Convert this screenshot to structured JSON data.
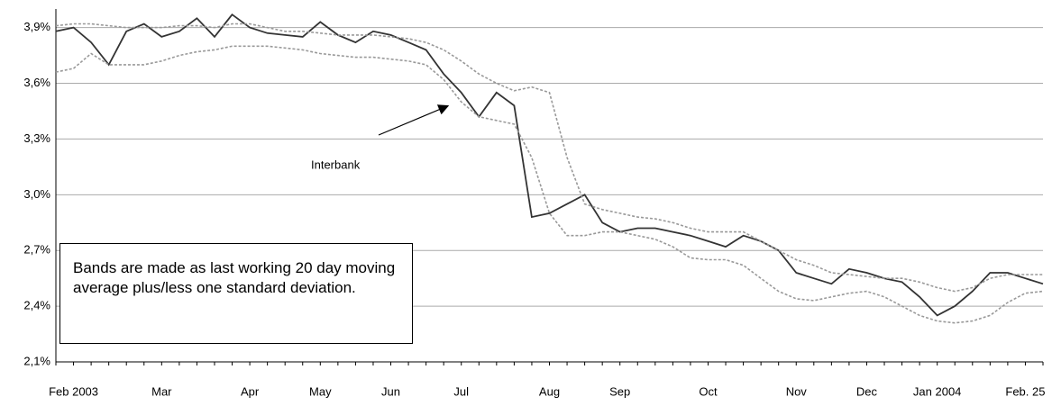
{
  "chart_data": {
    "type": "line",
    "note": "Bands are made as last working 20 day moving average plus/less one standard deviation.",
    "categories": [
      null,
      "Feb 2003",
      null,
      null,
      null,
      null,
      "Mar",
      null,
      null,
      null,
      null,
      "Apr",
      null,
      null,
      null,
      "May",
      null,
      null,
      null,
      "Jun",
      null,
      null,
      null,
      "Jul",
      null,
      null,
      null,
      null,
      "Aug",
      null,
      null,
      null,
      "Sep",
      null,
      null,
      null,
      null,
      "Oct",
      null,
      null,
      null,
      null,
      "Nov",
      null,
      null,
      null,
      "Dec",
      null,
      null,
      null,
      "Jan 2004",
      null,
      null,
      null,
      null,
      "Feb. 25",
      null
    ],
    "series": [
      {
        "name": "Interbank",
        "color": "#333333",
        "dashed": false,
        "values": [
          3.88,
          3.9,
          3.82,
          3.7,
          3.88,
          3.92,
          3.85,
          3.88,
          3.95,
          3.85,
          3.97,
          3.9,
          3.87,
          3.86,
          3.85,
          3.93,
          3.86,
          3.82,
          3.88,
          3.86,
          3.82,
          3.78,
          3.65,
          3.55,
          3.42,
          3.55,
          3.48,
          2.88,
          2.9,
          2.95,
          3.0,
          2.85,
          2.8,
          2.82,
          2.82,
          2.8,
          2.78,
          2.75,
          2.72,
          2.78,
          2.75,
          2.7,
          2.58,
          2.55,
          2.52,
          2.6,
          2.58,
          2.55,
          2.53,
          2.45,
          2.35,
          2.4,
          2.48,
          2.58,
          2.58,
          2.55,
          2.52
        ]
      },
      {
        "color": "#999999",
        "dashed": true,
        "values": [
          3.91,
          3.92,
          3.92,
          3.91,
          3.9,
          3.9,
          3.9,
          3.91,
          3.91,
          3.9,
          3.92,
          3.92,
          3.9,
          3.88,
          3.88,
          3.87,
          3.86,
          3.86,
          3.86,
          3.85,
          3.84,
          3.82,
          3.78,
          3.72,
          3.65,
          3.6,
          3.56,
          3.58,
          3.55,
          3.2,
          2.95,
          2.92,
          2.9,
          2.88,
          2.87,
          2.85,
          2.82,
          2.8,
          2.8,
          2.8,
          2.75,
          2.7,
          2.65,
          2.62,
          2.58,
          2.57,
          2.56,
          2.55,
          2.55,
          2.53,
          2.5,
          2.48,
          2.5,
          2.55,
          2.57,
          2.57,
          2.57
        ]
      },
      {
        "color": "#999999",
        "dashed": true,
        "values": [
          3.66,
          3.68,
          3.76,
          3.7,
          3.7,
          3.7,
          3.72,
          3.75,
          3.77,
          3.78,
          3.8,
          3.8,
          3.8,
          3.79,
          3.78,
          3.76,
          3.75,
          3.74,
          3.74,
          3.73,
          3.72,
          3.7,
          3.62,
          3.5,
          3.42,
          3.4,
          3.38,
          3.2,
          2.9,
          2.78,
          2.78,
          2.8,
          2.8,
          2.78,
          2.76,
          2.72,
          2.66,
          2.65,
          2.65,
          2.62,
          2.55,
          2.48,
          2.44,
          2.43,
          2.45,
          2.47,
          2.48,
          2.45,
          2.4,
          2.35,
          2.32,
          2.31,
          2.32,
          2.35,
          2.42,
          2.47,
          2.48
        ]
      }
    ],
    "ylim": [
      2.1,
      4.0
    ],
    "yticks": [
      {
        "value": 2.1,
        "label": "2,1%"
      },
      {
        "value": 2.4,
        "label": "2,4%"
      },
      {
        "value": 2.7,
        "label": "2,7%"
      },
      {
        "value": 3.0,
        "label": "3,0%"
      },
      {
        "value": 3.3,
        "label": "3,3%"
      },
      {
        "value": 3.6,
        "label": "3,6%"
      },
      {
        "value": 3.9,
        "label": "3,9%"
      }
    ],
    "grid": true
  }
}
